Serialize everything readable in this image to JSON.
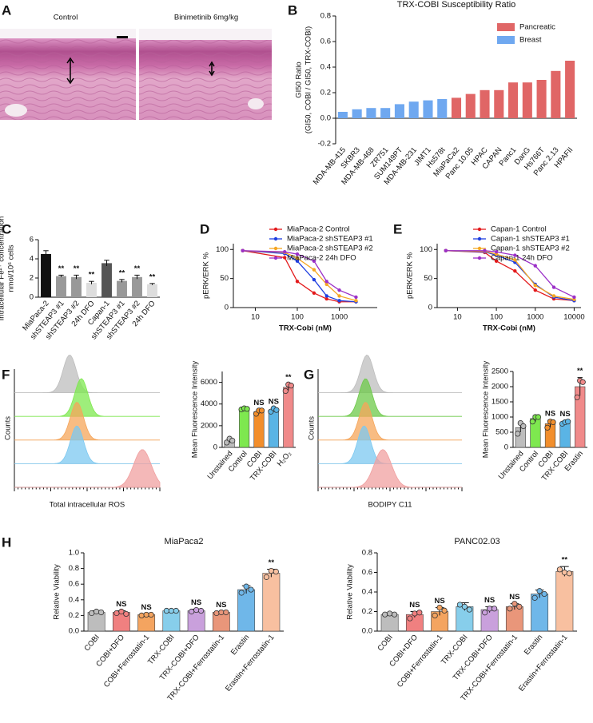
{
  "image_panel": {
    "panel": "A",
    "labels": [
      "Control",
      "Binimetinib 6mg/kg"
    ]
  },
  "chart_data": [
    {
      "type": "bar",
      "panel": "B",
      "title": "TRX-COBI Susceptibility Ratio",
      "ylabel": [
        "GI50 Ratio",
        "(GI50, COBI / GI50, TRX-COBI)"
      ],
      "categories": [
        "MDA-MB-415",
        "SKBR3",
        "MDA-MB-468",
        "ZR751",
        "SUM149PT",
        "MDA-MB-231",
        "JIMT1",
        "Hs578t",
        "MiaPaCa2",
        "Panc 10.05",
        "HPAC",
        "CAPAN",
        "Panc1",
        "DanG",
        "Hs766T",
        "Panc 2.13",
        "HPAFII"
      ],
      "series": [
        {
          "name": "Pancreatic",
          "color": "#e06666",
          "values": [
            null,
            null,
            null,
            null,
            null,
            null,
            null,
            null,
            0.16,
            0.19,
            0.22,
            0.22,
            0.28,
            0.28,
            0.3,
            0.37,
            0.45
          ]
        },
        {
          "name": "Breast",
          "color": "#6fa8f0",
          "values": [
            0.05,
            0.07,
            0.08,
            0.08,
            0.11,
            0.13,
            0.14,
            0.15,
            null,
            null,
            null,
            null,
            null,
            null,
            null,
            null,
            null
          ]
        }
      ],
      "ylim": [
        -0.2,
        0.8
      ],
      "yticks": [
        -0.2,
        {
          "value": 0,
          "label": "0.0"
        },
        0.2,
        0.4,
        0.6,
        0.8
      ],
      "legend": "upper-right"
    },
    {
      "type": "bar",
      "panel": "C",
      "ylabel": [
        "Intracellular Fe²⁺ concentration",
        "nmol/10⁶ cells"
      ],
      "categories": [
        "MiaPaca-2",
        "shSTEAP3 #1",
        "shSTEAP3 #2",
        "24h DFO",
        "Capan-1",
        "shSTEAP3 #1",
        "shSTEAP3 #2",
        "24h DFO"
      ],
      "values": [
        4.5,
        2.2,
        2.1,
        1.5,
        3.55,
        1.7,
        2.1,
        1.35
      ],
      "errors": [
        0.35,
        0.1,
        0.2,
        0.15,
        0.3,
        0.15,
        0.2,
        0.08
      ],
      "colors": [
        "#111111",
        "#999999",
        "#999999",
        "#dddddd",
        "#555555",
        "#999999",
        "#999999",
        "#dddddd"
      ],
      "annotations": [
        null,
        "**",
        "**",
        "**",
        null,
        "**",
        "**",
        "**"
      ],
      "ylim": [
        0,
        6
      ],
      "yticks": [
        0,
        2,
        4,
        6
      ]
    },
    {
      "type": "line",
      "panel": "D",
      "xlabel": "TRX-Cobi (nM)",
      "ylabel": "pERK/ERK %",
      "xscale": "log",
      "x": [
        5,
        50,
        100,
        250,
        500,
        1000,
        2500
      ],
      "series": [
        {
          "name": "MiaPaca-2 Control",
          "color": "#e31a1c",
          "values": [
            98,
            86,
            45,
            25,
            15,
            10,
            10
          ]
        },
        {
          "name": "MiaPaca-2 shSTEAP3 #1",
          "color": "#1f3fe0",
          "values": [
            98,
            93,
            80,
            48,
            20,
            12,
            10
          ]
        },
        {
          "name": "MiaPaca-2 shSTEAP3 #2",
          "color": "#f5a623",
          "values": [
            98,
            95,
            85,
            65,
            40,
            20,
            12
          ]
        },
        {
          "name": "MiaPaca-2 24h DFO",
          "color": "#9b30c8",
          "values": [
            98,
            96,
            92,
            80,
            45,
            30,
            18
          ]
        }
      ],
      "xlim": [
        3,
        8000
      ],
      "xticks": [
        10,
        100,
        1000
      ],
      "ylim": [
        0,
        110
      ],
      "yticks": [
        0,
        50,
        100
      ]
    },
    {
      "type": "line",
      "panel": "E",
      "xlabel": "TRX-Cobi (nM)",
      "ylabel": "pERK/ERK %",
      "xscale": "log",
      "x": [
        5,
        50,
        100,
        300,
        1000,
        3000,
        10000
      ],
      "series": [
        {
          "name": "Capan-1 Control",
          "color": "#e31a1c",
          "values": [
            98,
            95,
            80,
            63,
            30,
            15,
            12
          ]
        },
        {
          "name": "Capan-1 shSTEAP3 #1",
          "color": "#1f3fe0",
          "values": [
            98,
            96,
            90,
            78,
            40,
            18,
            12
          ]
        },
        {
          "name": "Capan-1 shSTEAP3 #2",
          "color": "#f5a623",
          "values": [
            98,
            97,
            92,
            82,
            38,
            20,
            14
          ]
        },
        {
          "name": "Capan-1 24h DFO",
          "color": "#9b30c8",
          "values": [
            98,
            98,
            96,
            90,
            72,
            35,
            18
          ]
        }
      ],
      "xlim": [
        3,
        15000
      ],
      "xticks": [
        10,
        100,
        1000,
        10000
      ],
      "ylim": [
        0,
        110
      ],
      "yticks": [
        0,
        50,
        100
      ]
    },
    {
      "type": "ridgeline",
      "panel": "F",
      "ylabel": "Counts",
      "xlabel": "Total intracellular ROS",
      "colors": [
        "#bdbdbd",
        "#7ee84f",
        "#f5a55a",
        "#7cc8f0",
        "#f0a0a0"
      ]
    },
    {
      "type": "bar",
      "ylabel": "Mean Fluorescence Intensity",
      "categories": [
        "Unstained",
        "Control",
        "COBI",
        "TRX-COBI",
        "H₂O₂"
      ],
      "values": [
        600,
        3550,
        3300,
        3450,
        5550
      ],
      "errors": [
        150,
        100,
        200,
        150,
        300
      ],
      "points": [
        [
          450,
          800,
          620
        ],
        [
          3500,
          3600,
          3550
        ],
        [
          3100,
          3400,
          3400
        ],
        [
          3300,
          3600,
          3450
        ],
        [
          5200,
          5800,
          5700
        ]
      ],
      "colors": [
        "#bdbdbd",
        "#7ee84f",
        "#f28e2b",
        "#5ab4e5",
        "#f08a8a"
      ],
      "annotations": [
        null,
        null,
        "NS",
        "NS",
        "**"
      ],
      "ylim": [
        0,
        7000
      ],
      "yticks": [
        0,
        2000,
        4000,
        6000
      ]
    },
    {
      "type": "ridgeline",
      "panel": "G",
      "ylabel": "Counts",
      "xlabel": "BODIPY C11",
      "colors": [
        "#bdbdbd",
        "#6dc94a",
        "#f5a55a",
        "#7cc8f0",
        "#f0a0a0"
      ]
    },
    {
      "type": "bar",
      "ylabel": "Mean Fluorescence Intensity",
      "categories": [
        "Unstained",
        "Control",
        "COBI",
        "TRX-COBI",
        "Erastin"
      ],
      "values": [
        650,
        950,
        780,
        820,
        2000
      ],
      "errors": [
        150,
        100,
        120,
        60,
        300
      ],
      "points": [
        [
          450,
          800,
          700
        ],
        [
          850,
          1000,
          1000
        ],
        [
          650,
          850,
          830
        ],
        [
          780,
          830,
          850
        ],
        [
          1650,
          2200,
          2150
        ]
      ],
      "colors": [
        "#bdbdbd",
        "#7ee84f",
        "#f28e2b",
        "#5ab4e5",
        "#f08a8a"
      ],
      "annotations": [
        null,
        null,
        "NS",
        "NS",
        "**"
      ],
      "ylim": [
        0,
        2500
      ],
      "yticks": [
        0,
        500,
        1000,
        1500,
        2000,
        2500
      ]
    },
    {
      "type": "bar",
      "panel": "H",
      "title": "MiaPaca2",
      "ylabel": "Relative Viability",
      "categories": [
        "COBI",
        "COBI+DFO",
        "COBI+Ferrostatin-1",
        "TRX-COBI",
        "TRX-COBI+DFO",
        "TRX-COBI+Ferrostatin-1",
        "Erastin",
        "Erastin+Ferrostatin-1"
      ],
      "values": [
        0.24,
        0.24,
        0.21,
        0.26,
        0.26,
        0.24,
        0.53,
        0.74
      ],
      "errors": [
        0.02,
        0.02,
        0.01,
        0.01,
        0.02,
        0.01,
        0.05,
        0.05
      ],
      "points": [
        [
          0.23,
          0.25,
          0.24
        ],
        [
          0.23,
          0.25,
          0.22
        ],
        [
          0.2,
          0.21,
          0.21
        ],
        [
          0.26,
          0.26,
          0.26
        ],
        [
          0.25,
          0.27,
          0.26
        ],
        [
          0.23,
          0.24,
          0.24
        ],
        [
          0.49,
          0.57,
          0.53
        ],
        [
          0.69,
          0.77,
          0.76
        ]
      ],
      "colors": [
        "#bdbdbd",
        "#f08080",
        "#f4a460",
        "#87ceeb",
        "#c9a0dc",
        "#e9967a",
        "#6fb7e9",
        "#f8c0a0"
      ],
      "annotations": [
        null,
        "NS",
        "NS",
        null,
        "NS",
        "NS",
        null,
        "**"
      ],
      "ylim": [
        0,
        1
      ],
      "yticks": [
        {
          "value": 0,
          "label": "0.0"
        },
        0.2,
        0.4,
        0.6,
        0.8,
        {
          "value": 1,
          "label": "1.0"
        }
      ]
    },
    {
      "type": "bar",
      "title": "PANC02.03",
      "ylabel": "Relative Viability",
      "categories": [
        "COBI",
        "COBI+DFO",
        "COBI+Ferrostatin-1",
        "TRX-COBI",
        "TRX-COBI+DFO",
        "TRX-COBI+Ferrostatin-1",
        "Erastin",
        "Erastin+Ferrostatin-1"
      ],
      "values": [
        0.17,
        0.17,
        0.2,
        0.25,
        0.22,
        0.25,
        0.38,
        0.61
      ],
      "errors": [
        0.01,
        0.03,
        0.04,
        0.04,
        0.03,
        0.03,
        0.04,
        0.05
      ],
      "points": [
        [
          0.17,
          0.18,
          0.17
        ],
        [
          0.13,
          0.18,
          0.19
        ],
        [
          0.16,
          0.24,
          0.21
        ],
        [
          0.27,
          0.25,
          0.22
        ],
        [
          0.19,
          0.23,
          0.23
        ],
        [
          0.23,
          0.28,
          0.25
        ],
        [
          0.34,
          0.41,
          0.38
        ],
        [
          0.63,
          0.6,
          0.59
        ]
      ],
      "colors": [
        "#bdbdbd",
        "#f08080",
        "#f4a460",
        "#87ceeb",
        "#c9a0dc",
        "#e9967a",
        "#6fb7e9",
        "#f8c0a0"
      ],
      "annotations": [
        null,
        "NS",
        "NS",
        null,
        "NS",
        "NS",
        null,
        "**"
      ],
      "ylim": [
        0,
        0.8
      ],
      "yticks": [
        {
          "value": 0,
          "label": "0.0"
        },
        0.2,
        0.4,
        0.6,
        0.8
      ]
    }
  ]
}
